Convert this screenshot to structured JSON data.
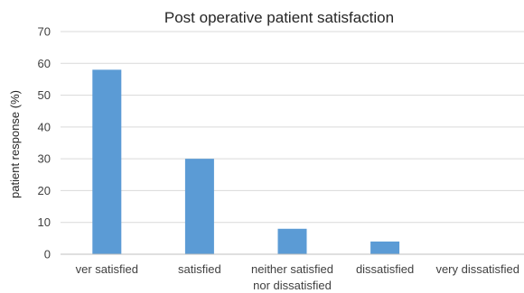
{
  "chart_data": {
    "type": "bar",
    "title": "Post operative patient satisfaction",
    "xlabel": "",
    "ylabel": "patient response (%)",
    "ylim": [
      0,
      70
    ],
    "yticks": [
      0,
      10,
      20,
      30,
      40,
      50,
      60,
      70
    ],
    "grid": true,
    "categories": [
      [
        "ver satisfied"
      ],
      [
        "satisfied"
      ],
      [
        "neither satisfied",
        "nor dissatisfied"
      ],
      [
        "dissatisfied"
      ],
      [
        "very dissatisfied"
      ]
    ],
    "values": [
      58,
      30,
      8,
      4,
      0
    ],
    "bar_color": "#5b9bd5"
  }
}
